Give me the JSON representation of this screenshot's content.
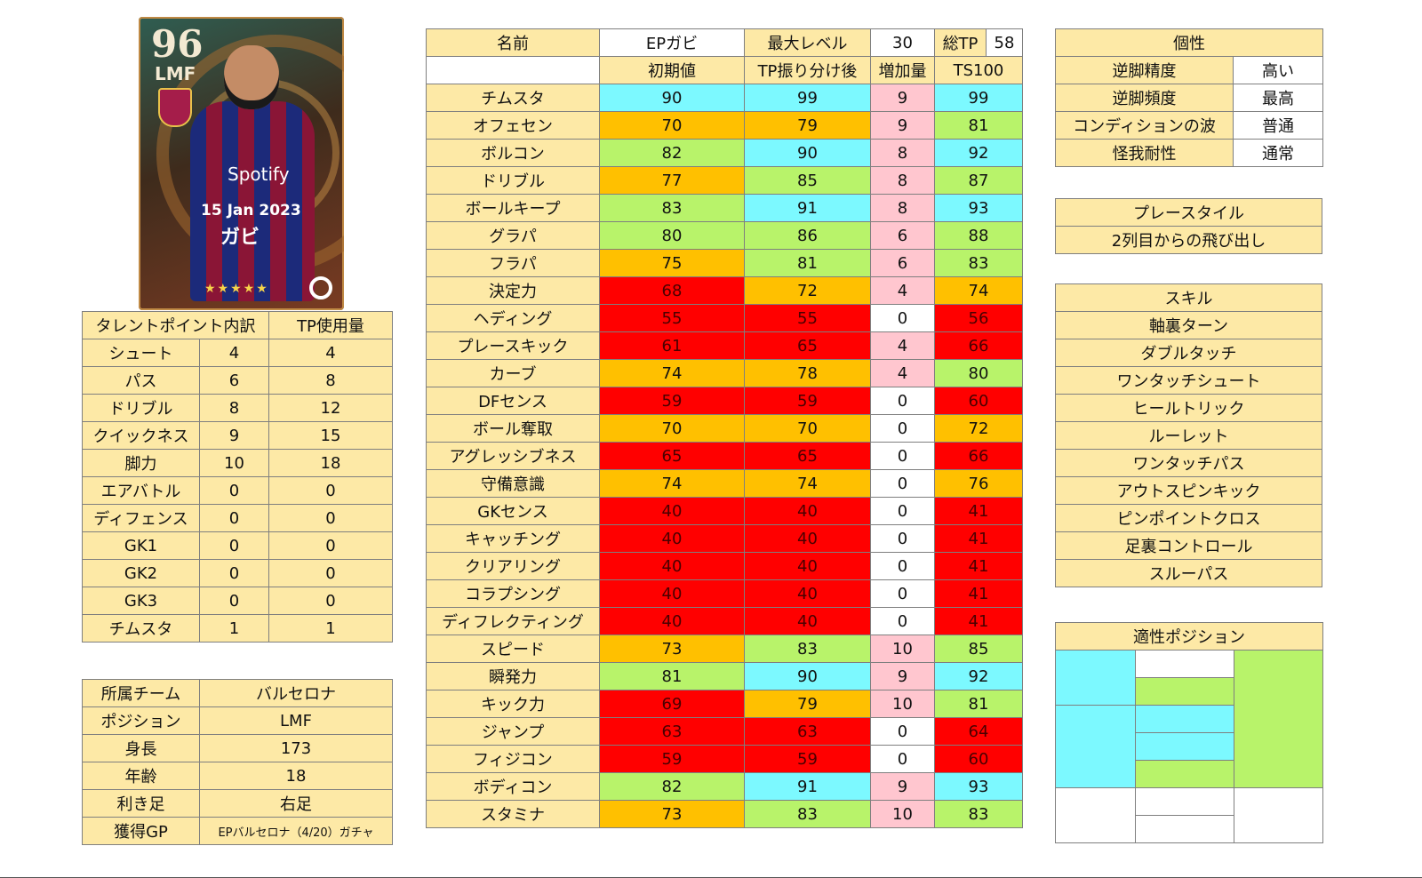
{
  "card": {
    "rating": "96",
    "position": "LMF",
    "date": "15 Jan 2023",
    "name": "ガビ",
    "stars": "★★★★★",
    "sponsor": "Spotify"
  },
  "talent": {
    "header_left": "タレントポイント内訳",
    "header_right": "TP使用量",
    "rows": [
      {
        "name": "シュート",
        "points": "4",
        "used": "4"
      },
      {
        "name": "パス",
        "points": "6",
        "used": "8"
      },
      {
        "name": "ドリブル",
        "points": "8",
        "used": "12"
      },
      {
        "name": "クイックネス",
        "points": "9",
        "used": "15"
      },
      {
        "name": "脚力",
        "points": "10",
        "used": "18"
      },
      {
        "name": "エアバトル",
        "points": "0",
        "used": "0"
      },
      {
        "name": "ディフェンス",
        "points": "0",
        "used": "0"
      },
      {
        "name": "GK1",
        "points": "0",
        "used": "0"
      },
      {
        "name": "GK2",
        "points": "0",
        "used": "0"
      },
      {
        "name": "GK3",
        "points": "0",
        "used": "0"
      },
      {
        "name": "チムスタ",
        "points": "1",
        "used": "1"
      }
    ]
  },
  "info": {
    "rows": [
      {
        "label": "所属チーム",
        "value": "バルセロナ"
      },
      {
        "label": "ポジション",
        "value": "LMF"
      },
      {
        "label": "身長",
        "value": "173"
      },
      {
        "label": "年齢",
        "value": "18"
      },
      {
        "label": "利き足",
        "value": "右足"
      },
      {
        "label": "獲得GP",
        "value": "EPバルセロナ（4/20）ガチャ"
      }
    ]
  },
  "stats": {
    "name_label": "名前",
    "name_value": "EPガビ",
    "maxlevel_label": "最大レベル",
    "maxlevel_value": "30",
    "totaltp_label": "総TP",
    "totaltp_value": "58",
    "col_initial": "初期値",
    "col_after": "TP振り分け後",
    "col_increase": "増加量",
    "col_ts": "TS100",
    "rows": [
      {
        "name": "チムスタ",
        "init": "90",
        "after": "99",
        "inc": "9",
        "ts": "99",
        "c1": "cya",
        "c2": "cya",
        "c3": "pink",
        "c4": "cya"
      },
      {
        "name": "オフェセン",
        "init": "70",
        "after": "79",
        "inc": "9",
        "ts": "81",
        "c1": "ora",
        "c2": "ora",
        "c3": "pink",
        "c4": "grn"
      },
      {
        "name": "ボルコン",
        "init": "82",
        "after": "90",
        "inc": "8",
        "ts": "92",
        "c1": "grn",
        "c2": "cya",
        "c3": "pink",
        "c4": "cya"
      },
      {
        "name": "ドリブル",
        "init": "77",
        "after": "85",
        "inc": "8",
        "ts": "87",
        "c1": "ora",
        "c2": "grn",
        "c3": "pink",
        "c4": "grn"
      },
      {
        "name": "ボールキープ",
        "init": "83",
        "after": "91",
        "inc": "8",
        "ts": "93",
        "c1": "grn",
        "c2": "cya",
        "c3": "pink",
        "c4": "cya"
      },
      {
        "name": "グラパ",
        "init": "80",
        "after": "86",
        "inc": "6",
        "ts": "88",
        "c1": "grn",
        "c2": "grn",
        "c3": "pink",
        "c4": "grn"
      },
      {
        "name": "フラパ",
        "init": "75",
        "after": "81",
        "inc": "6",
        "ts": "83",
        "c1": "ora",
        "c2": "grn",
        "c3": "pink",
        "c4": "grn"
      },
      {
        "name": "決定力",
        "init": "68",
        "after": "72",
        "inc": "4",
        "ts": "74",
        "c1": "red",
        "c2": "ora",
        "c3": "pink",
        "c4": "ora"
      },
      {
        "name": "ヘディング",
        "init": "55",
        "after": "55",
        "inc": "0",
        "ts": "56",
        "c1": "red",
        "c2": "red",
        "c3": "w",
        "c4": "red"
      },
      {
        "name": "プレースキック",
        "init": "61",
        "after": "65",
        "inc": "4",
        "ts": "66",
        "c1": "red",
        "c2": "red",
        "c3": "pink",
        "c4": "red"
      },
      {
        "name": "カーブ",
        "init": "74",
        "after": "78",
        "inc": "4",
        "ts": "80",
        "c1": "ora",
        "c2": "ora",
        "c3": "pink",
        "c4": "grn"
      },
      {
        "name": "DFセンス",
        "init": "59",
        "after": "59",
        "inc": "0",
        "ts": "60",
        "c1": "red",
        "c2": "red",
        "c3": "w",
        "c4": "red"
      },
      {
        "name": "ボール奪取",
        "init": "70",
        "after": "70",
        "inc": "0",
        "ts": "72",
        "c1": "ora",
        "c2": "ora",
        "c3": "w",
        "c4": "ora"
      },
      {
        "name": "アグレッシブネス",
        "init": "65",
        "after": "65",
        "inc": "0",
        "ts": "66",
        "c1": "red",
        "c2": "red",
        "c3": "w",
        "c4": "red"
      },
      {
        "name": "守備意識",
        "init": "74",
        "after": "74",
        "inc": "0",
        "ts": "76",
        "c1": "ora",
        "c2": "ora",
        "c3": "w",
        "c4": "ora"
      },
      {
        "name": "GKセンス",
        "init": "40",
        "after": "40",
        "inc": "0",
        "ts": "41",
        "c1": "red",
        "c2": "red",
        "c3": "w",
        "c4": "red"
      },
      {
        "name": "キャッチング",
        "init": "40",
        "after": "40",
        "inc": "0",
        "ts": "41",
        "c1": "red",
        "c2": "red",
        "c3": "w",
        "c4": "red"
      },
      {
        "name": "クリアリング",
        "init": "40",
        "after": "40",
        "inc": "0",
        "ts": "41",
        "c1": "red",
        "c2": "red",
        "c3": "w",
        "c4": "red"
      },
      {
        "name": "コラプシング",
        "init": "40",
        "after": "40",
        "inc": "0",
        "ts": "41",
        "c1": "red",
        "c2": "red",
        "c3": "w",
        "c4": "red"
      },
      {
        "name": "ディフレクティング",
        "init": "40",
        "after": "40",
        "inc": "0",
        "ts": "41",
        "c1": "red",
        "c2": "red",
        "c3": "w",
        "c4": "red"
      },
      {
        "name": "スピード",
        "init": "73",
        "after": "83",
        "inc": "10",
        "ts": "85",
        "c1": "ora",
        "c2": "grn",
        "c3": "pink",
        "c4": "grn"
      },
      {
        "name": "瞬発力",
        "init": "81",
        "after": "90",
        "inc": "9",
        "ts": "92",
        "c1": "grn",
        "c2": "cya",
        "c3": "pink",
        "c4": "cya"
      },
      {
        "name": "キック力",
        "init": "69",
        "after": "79",
        "inc": "10",
        "ts": "81",
        "c1": "red",
        "c2": "ora",
        "c3": "pink",
        "c4": "grn"
      },
      {
        "name": "ジャンプ",
        "init": "63",
        "after": "63",
        "inc": "0",
        "ts": "64",
        "c1": "red",
        "c2": "red",
        "c3": "w",
        "c4": "red"
      },
      {
        "name": "フィジコン",
        "init": "59",
        "after": "59",
        "inc": "0",
        "ts": "60",
        "c1": "red",
        "c2": "red",
        "c3": "w",
        "c4": "red"
      },
      {
        "name": "ボディコン",
        "init": "82",
        "after": "91",
        "inc": "9",
        "ts": "93",
        "c1": "grn",
        "c2": "cya",
        "c3": "pink",
        "c4": "cya"
      },
      {
        "name": "スタミナ",
        "init": "73",
        "after": "83",
        "inc": "10",
        "ts": "83",
        "c1": "ora",
        "c2": "grn",
        "c3": "pink",
        "c4": "grn"
      }
    ]
  },
  "traits": {
    "title": "個性",
    "rows": [
      {
        "label": "逆脚精度",
        "value": "高い"
      },
      {
        "label": "逆脚頻度",
        "value": "最高"
      },
      {
        "label": "コンディションの波",
        "value": "普通"
      },
      {
        "label": "怪我耐性",
        "value": "通常"
      }
    ]
  },
  "playstyle": {
    "title": "プレースタイル",
    "value": "2列目からの飛び出し"
  },
  "skills": {
    "title": "スキル",
    "items": [
      "軸裏ターン",
      "ダブルタッチ",
      "ワンタッチシュート",
      "ヒールトリック",
      "ルーレット",
      "ワンタッチパス",
      "アウトスピンキック",
      "ピンポイントクロス",
      "足裏コントロール",
      "スルーパス"
    ]
  },
  "positions": {
    "title": "適性ポジション",
    "colors": {
      "cyan": "#7cf9ff",
      "green": "#b8f36a",
      "white": "#ffffff"
    }
  }
}
